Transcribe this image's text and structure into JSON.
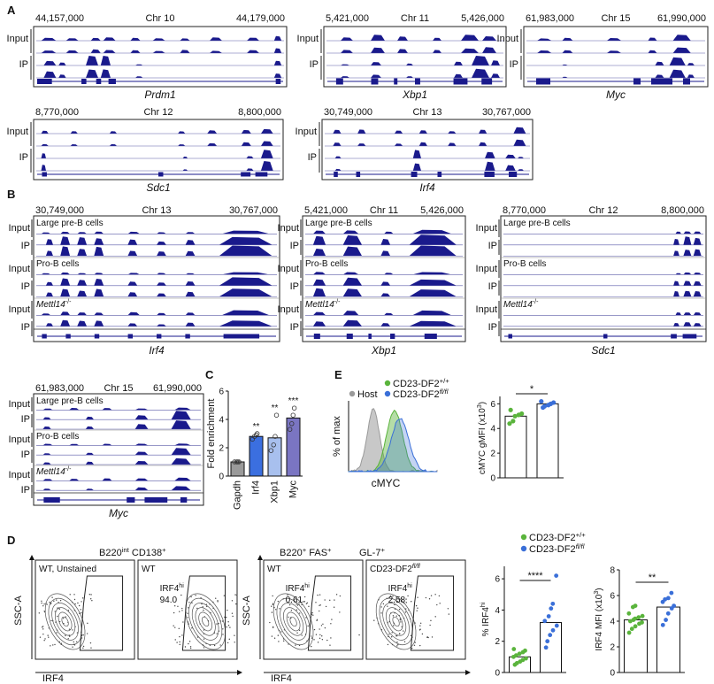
{
  "colors": {
    "track": "#1a1a8c",
    "track_line": "#5a5aa8",
    "gene": "#1a1a8c",
    "wt_green": "#5ab43c",
    "ko_blue": "#3a6fd8",
    "host_gray": "#9a9a9a"
  },
  "panels": {
    "A": {
      "letter": "A",
      "tracks": [
        {
          "start": "44,157,000",
          "chr": "Chr 10",
          "end": "44,179,000",
          "gene": "Prdm1",
          "row1": "Input",
          "row2": "IP"
        },
        {
          "start": "5,421,000",
          "chr": "Chr 11",
          "end": "5,426,000",
          "gene": "Xbp1",
          "row1": "Input",
          "row2": "IP"
        },
        {
          "start": "61,983,000",
          "chr": "Chr 15",
          "end": "61,990,000",
          "gene": "Myc",
          "row1": "Input",
          "row2": "IP"
        },
        {
          "start": "8,770,000",
          "chr": "Chr 12",
          "end": "8,800,000",
          "gene": "Sdc1",
          "row1": "Input",
          "row2": "IP"
        },
        {
          "start": "30,749,000",
          "chr": "Chr 13",
          "end": "30,767,000",
          "gene": "Irf4",
          "row1": "Input",
          "row2": "IP"
        }
      ]
    },
    "B": {
      "letter": "B",
      "group_large": "Large pre-B cells",
      "group_pro": "Pro-B cells",
      "group_ko": "Mettl14",
      "ko_sup": "-/-",
      "input": "Input",
      "ip": "IP",
      "tracks": [
        {
          "start": "30,749,000",
          "chr": "Chr 13",
          "end": "30,767,000",
          "gene": "Irf4"
        },
        {
          "start": "5,421,000",
          "chr": "Chr 11",
          "end": "5,426,000",
          "gene": "Xbp1"
        },
        {
          "start": "8,770,000",
          "chr": "Chr 12",
          "end": "8,800,000",
          "gene": "Sdc1"
        },
        {
          "start": "61,983,000",
          "chr": "Chr 15",
          "end": "61,990,000",
          "gene": "Myc"
        }
      ]
    },
    "C": {
      "letter": "C",
      "stars": [
        "**",
        "**",
        "***"
      ]
    },
    "E": {
      "letter": "E",
      "legend_host": "Host",
      "legend_wt": "CD23-DF2",
      "legend_wt_sup": "+/+",
      "legend_ko": "CD23-DF2",
      "legend_ko_sup": "fl/fl",
      "hist_ylabel": "% of max",
      "hist_xlabel": "cMYC",
      "star": "*"
    },
    "D": {
      "letter": "D",
      "header1": "B220",
      "header1_sup": "int",
      "header1b": " CD138",
      "header1b_sup": "+",
      "header2": "B220",
      "header2_sup": "+",
      "header2b": " FAS",
      "header2b_sup": "+",
      "header2c": " GL-7",
      "header2c_sup": "+",
      "plot_titles": [
        "WT, Unstained",
        "WT",
        "WT",
        "CD23-DF2"
      ],
      "plot4_sup": "fl/fl",
      "gate_label": "IRF4",
      "gate_sup": "hi",
      "gate_values": [
        "94.0",
        "0.61",
        "2.58"
      ],
      "ylabel": "SSC-A",
      "xlabel": "IRF4",
      "legend_wt": "CD23-DF2",
      "legend_wt_sup": "+/+",
      "legend_ko": "CD23-DF2",
      "legend_ko_sup": "fl/fl",
      "star_pct": "****",
      "star_mfi": "**"
    }
  },
  "chart_data": [
    {
      "id": "C",
      "type": "bar",
      "ylabel": "Fold enrichment",
      "categories": [
        "Gapdh",
        "Irf4",
        "Xbp1",
        "Myc"
      ],
      "values": [
        1.0,
        2.8,
        2.7,
        4.1
      ],
      "points": [
        [
          1.0,
          1.0,
          1.0,
          1.0
        ],
        [
          2.6,
          2.8,
          2.9,
          3.0
        ],
        [
          1.8,
          2.2,
          2.8,
          4.3
        ],
        [
          3.3,
          3.7,
          4.3,
          4.8
        ]
      ],
      "bar_colors": [
        "#9a9a9a",
        "#3b6fe0",
        "#a8c0ee",
        "#7a75c2"
      ],
      "yticks": [
        0,
        2,
        4,
        6
      ],
      "ylim": [
        0,
        6
      ]
    },
    {
      "id": "E",
      "type": "bar",
      "ylabel": "cMYC gMFI (x10",
      "ylabel_sup": "3",
      "ylabel_end": ")",
      "categories": [
        "CD23-DF2+/+",
        "CD23-DF2fl/fl"
      ],
      "values": [
        5.0,
        6.0
      ],
      "points": [
        [
          4.4,
          4.6,
          5.0,
          5.1,
          5.2,
          5.5
        ],
        [
          5.7,
          5.8,
          5.9,
          6.0,
          6.1,
          6.2
        ]
      ],
      "yticks": [
        0,
        2,
        4,
        6
      ],
      "ylim": [
        0,
        6.6
      ]
    },
    {
      "id": "D_pct",
      "type": "bar",
      "ylabel": "% IRF4",
      "ylabel_sup": "hi",
      "categories": [
        "CD23-DF2+/+",
        "CD23-DF2fl/fl"
      ],
      "values": [
        1.0,
        3.2
      ],
      "points": [
        [
          0.5,
          0.6,
          0.7,
          0.8,
          0.9,
          1.0,
          1.1,
          1.2,
          1.3,
          1.4,
          1.5
        ],
        [
          1.6,
          2.0,
          2.4,
          2.7,
          3.0,
          3.3,
          3.6,
          4.1,
          4.4,
          6.2
        ]
      ],
      "yticks": [
        0,
        2,
        4,
        6
      ],
      "ylim": [
        0,
        6.8
      ]
    },
    {
      "id": "D_mfi",
      "type": "bar",
      "ylabel": "IRF4 MFI (x10",
      "ylabel_sup": "3",
      "ylabel_end": ")",
      "categories": [
        "CD23-DF2+/+",
        "CD23-DF2fl/fl"
      ],
      "values": [
        4.1,
        5.1
      ],
      "points": [
        [
          3.1,
          3.4,
          3.6,
          3.8,
          3.9,
          4.0,
          4.1,
          4.2,
          4.3,
          4.4,
          4.6,
          5.1,
          5.2
        ],
        [
          3.7,
          4.1,
          4.6,
          5.0,
          5.2,
          5.5,
          5.7,
          5.8,
          6.2
        ]
      ],
      "yticks": [
        0,
        2,
        4,
        6,
        8
      ],
      "ylim": [
        0,
        8
      ]
    }
  ]
}
